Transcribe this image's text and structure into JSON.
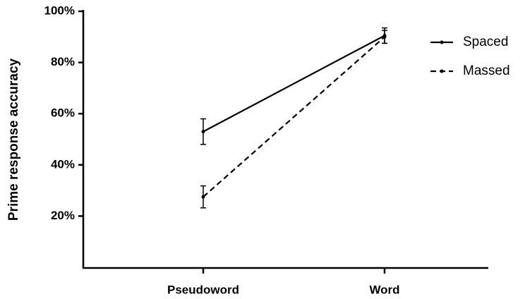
{
  "chart_data": {
    "type": "line",
    "ylabel": "Prime response accuracy",
    "categories": [
      "Pseudoword",
      "Word"
    ],
    "series": [
      {
        "name": "Spaced",
        "color": "#000000",
        "linestyle": "solid",
        "values": [
          53,
          90.5
        ],
        "errors": [
          5,
          3
        ]
      },
      {
        "name": "Massed",
        "color": "#000000",
        "linestyle": "dashed",
        "values": [
          27.5,
          90
        ],
        "errors": [
          4.3,
          2.5
        ]
      }
    ],
    "ylim": [
      0,
      100
    ],
    "yticks": [
      {
        "value": 20,
        "label": "20%"
      },
      {
        "value": 40,
        "label": "40%"
      },
      {
        "value": 60,
        "label": "60%"
      },
      {
        "value": 80,
        "label": "80%"
      },
      {
        "value": 100,
        "label": "100%"
      }
    ],
    "grid": false,
    "legend": "upper right"
  }
}
